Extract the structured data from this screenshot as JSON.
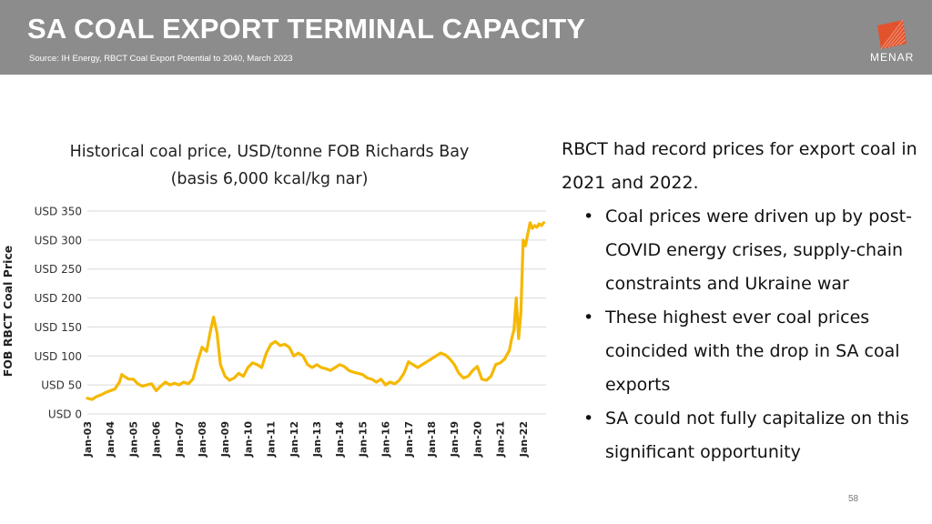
{
  "header": {
    "title": "SA COAL EXPORT TERMINAL CAPACITY",
    "source": "Source: IH Energy, RBCT Coal Export Potential to 2040, March 2023",
    "logo_text": "MENAR",
    "logo_icon": "menar-logo-icon",
    "logo_color": "#e2532d"
  },
  "chart_data": {
    "type": "line",
    "title": "Historical coal price, USD/tonne FOB Richards Bay",
    "subtitle": "(basis 6,000 kcal/kg nar)",
    "ylabel": "FOB RBCT Coal Price",
    "ylim": [
      0,
      350
    ],
    "yticks": [
      0,
      50,
      100,
      150,
      200,
      250,
      300,
      350
    ],
    "ytick_labels": [
      "USD 0",
      "USD 50",
      "USD 100",
      "USD 150",
      "USD 200",
      "USD 250",
      "USD 300",
      "USD 350"
    ],
    "xlim": [
      2003,
      2023
    ],
    "xticks": [
      2003,
      2004,
      2005,
      2006,
      2007,
      2008,
      2009,
      2010,
      2011,
      2012,
      2013,
      2014,
      2015,
      2016,
      2017,
      2018,
      2019,
      2020,
      2021,
      2022
    ],
    "xtick_labels": [
      "Jan-03",
      "Jan-04",
      "Jan-05",
      "Jan-06",
      "Jan-07",
      "Jan-08",
      "Jan-09",
      "Jan-10",
      "Jan-11",
      "Jan-12",
      "Jan-13",
      "Jan-14",
      "Jan-15",
      "Jan-16",
      "Jan-17",
      "Jan-18",
      "Jan-19",
      "Jan-20",
      "Jan-21",
      "Jan-22"
    ],
    "grid": true,
    "line_color": "#f5b800",
    "series": [
      {
        "x": [
          2003.0,
          2003.2,
          2003.4,
          2003.6,
          2003.8,
          2004.0,
          2004.2,
          2004.4,
          2004.5,
          2004.6,
          2004.8,
          2005.0,
          2005.2,
          2005.4,
          2005.6,
          2005.8,
          2006.0,
          2006.2,
          2006.4,
          2006.6,
          2006.8,
          2007.0,
          2007.2,
          2007.4,
          2007.6,
          2007.8,
          2008.0,
          2008.2,
          2008.35,
          2008.5,
          2008.65,
          2008.8,
          2009.0,
          2009.2,
          2009.4,
          2009.6,
          2009.8,
          2010.0,
          2010.2,
          2010.4,
          2010.6,
          2010.8,
          2011.0,
          2011.2,
          2011.4,
          2011.6,
          2011.8,
          2012.0,
          2012.2,
          2012.4,
          2012.6,
          2012.8,
          2013.0,
          2013.2,
          2013.4,
          2013.6,
          2013.8,
          2014.0,
          2014.2,
          2014.4,
          2014.6,
          2014.8,
          2015.0,
          2015.2,
          2015.4,
          2015.6,
          2015.8,
          2016.0,
          2016.2,
          2016.4,
          2016.6,
          2016.8,
          2017.0,
          2017.2,
          2017.4,
          2017.6,
          2017.8,
          2018.0,
          2018.2,
          2018.4,
          2018.6,
          2018.8,
          2019.0,
          2019.2,
          2019.4,
          2019.6,
          2019.8,
          2020.0,
          2020.2,
          2020.4,
          2020.6,
          2020.8,
          2021.0,
          2021.2,
          2021.4,
          2021.5,
          2021.6,
          2021.7,
          2021.8,
          2021.9,
          2022.0,
          2022.1,
          2022.2,
          2022.3,
          2022.4,
          2022.5,
          2022.6,
          2022.7,
          2022.8,
          2022.9
        ],
        "y": [
          27,
          25,
          30,
          33,
          37,
          40,
          43,
          55,
          68,
          65,
          60,
          60,
          52,
          48,
          50,
          52,
          40,
          48,
          55,
          50,
          53,
          50,
          55,
          52,
          60,
          90,
          115,
          108,
          140,
          167,
          140,
          85,
          65,
          58,
          62,
          70,
          65,
          80,
          88,
          85,
          80,
          105,
          120,
          125,
          118,
          120,
          115,
          100,
          105,
          100,
          85,
          80,
          85,
          80,
          78,
          75,
          80,
          85,
          82,
          75,
          72,
          70,
          68,
          62,
          60,
          55,
          60,
          50,
          55,
          52,
          58,
          70,
          90,
          85,
          80,
          85,
          90,
          95,
          100,
          105,
          102,
          95,
          85,
          70,
          62,
          65,
          75,
          82,
          60,
          58,
          65,
          85,
          88,
          95,
          110,
          130,
          145,
          200,
          130,
          175,
          300,
          290,
          310,
          330,
          320,
          325,
          322,
          328,
          325,
          330
        ]
      }
    ]
  },
  "bullets": {
    "intro": "RBCT had record prices for export coal in 2021 and 2022.",
    "items": [
      "Coal prices were driven up by post-COVID energy crises, supply-chain constraints and Ukraine war",
      "These highest ever coal prices coincided with the drop in SA coal exports",
      "SA could not fully capitalize on this significant opportunity"
    ]
  },
  "footer": {
    "page_number": "58"
  }
}
